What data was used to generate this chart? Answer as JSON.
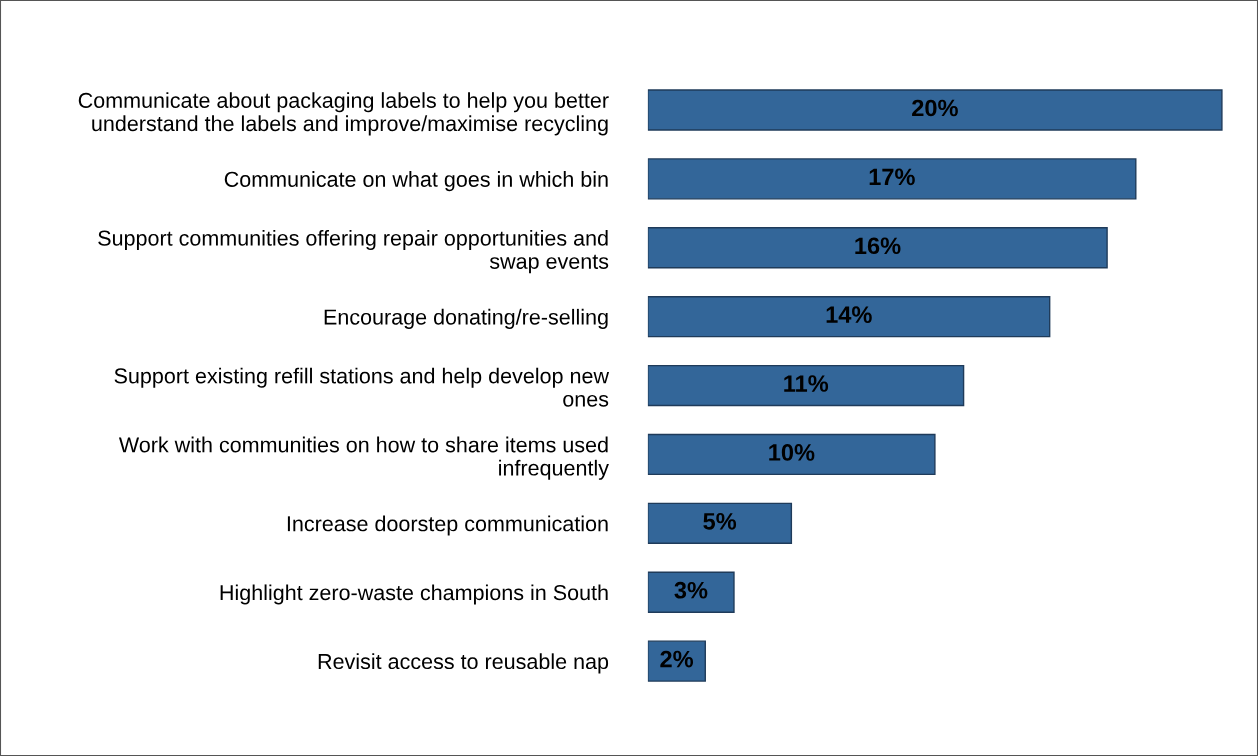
{
  "chart_data": {
    "type": "bar",
    "orientation": "horizontal",
    "data_labels": true,
    "grid": false,
    "legend": false,
    "color": "#336699",
    "categories": [
      "Communicate about packaging labels to help you better\nunderstand the labels and improve/maximise recycling",
      "Communicate on what goes in which bin",
      "Support communities offering repair opportunities and\nswap events",
      "Encourage donating/re-selling",
      "Support existing refill stations and help develop new\nones",
      "Work with communities on how to share items used\ninfrequently",
      "Increase doorstep communication",
      "Highlight zero-waste champions in South",
      "Revisit access to reusable nap"
    ],
    "values": [
      20,
      17,
      16,
      14,
      11,
      10,
      5,
      3,
      2
    ],
    "value_labels": [
      "20%",
      "17%",
      "16%",
      "14%",
      "11%",
      "10%",
      "5%",
      "3%",
      "2%"
    ]
  }
}
